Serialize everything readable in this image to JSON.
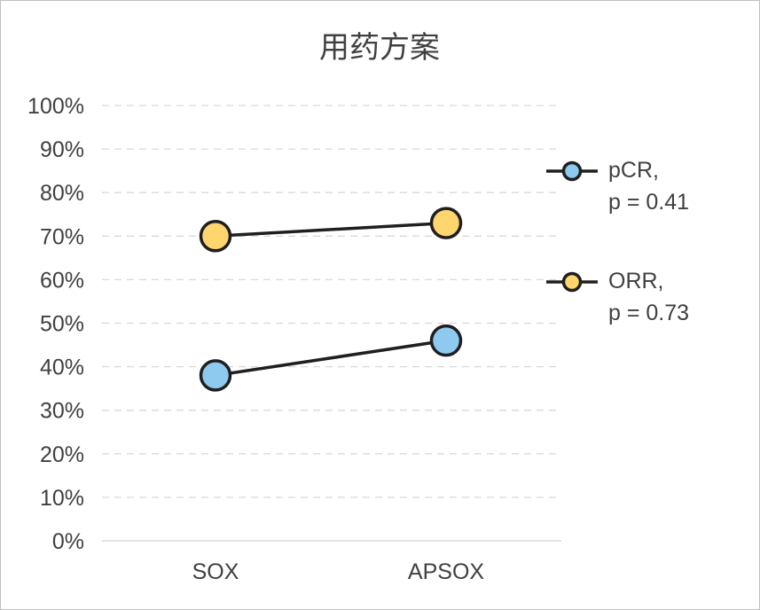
{
  "chart_data": {
    "type": "line",
    "title": "用药方案",
    "categories": [
      "SOX",
      "APSOX"
    ],
    "ylim": [
      0,
      100
    ],
    "y_ticks": [
      "0%",
      "10%",
      "20%",
      "30%",
      "40%",
      "50%",
      "60%",
      "70%",
      "80%",
      "90%",
      "100%"
    ],
    "y_format": "percent",
    "grid": true,
    "legend_position": "right",
    "series": [
      {
        "name": "pCR,",
        "stat": "p = 0.41",
        "values": [
          38,
          46
        ],
        "color": "#8ec9f0"
      },
      {
        "name": "ORR,",
        "stat": "p = 0.73",
        "values": [
          70,
          73
        ],
        "color": "#ffd56e"
      }
    ]
  }
}
